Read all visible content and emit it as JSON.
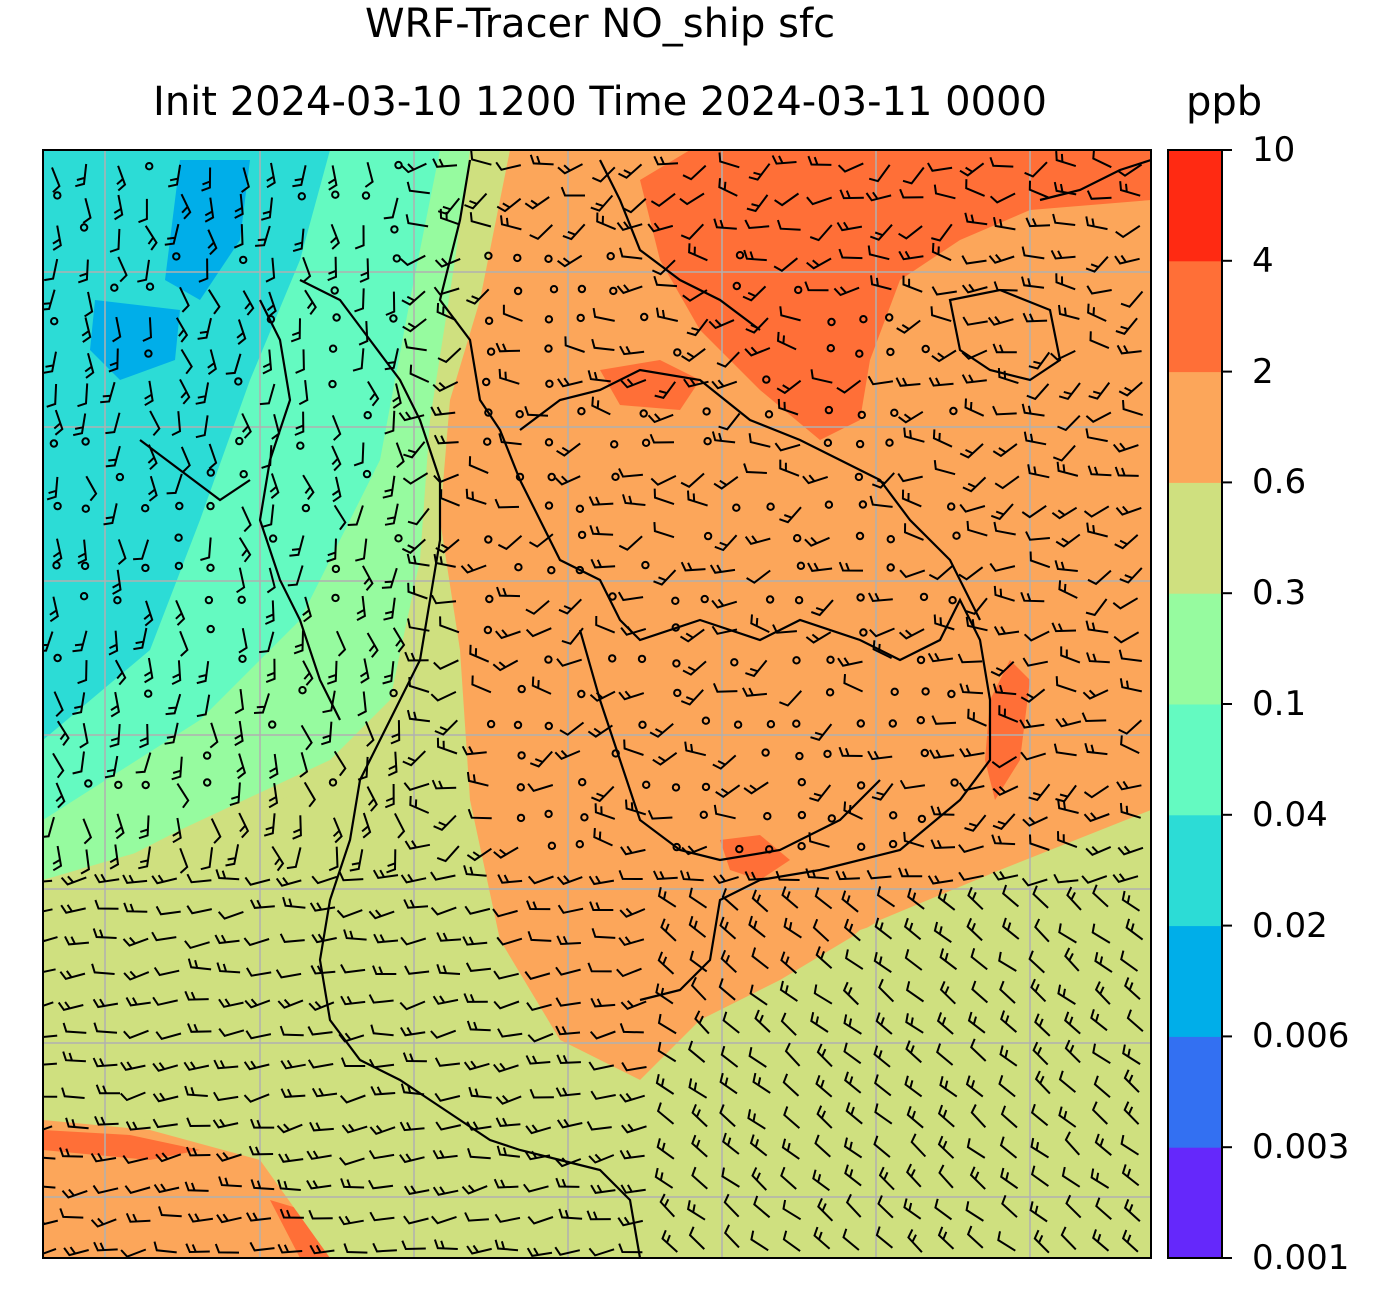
{
  "title": {
    "line1": "WRF-Tracer NO_ship sfc",
    "line2": "Init 2024-03-10 1200 Time 2024-03-11 0000",
    "units": "ppb"
  },
  "colorbar": {
    "levels": [
      "0.001",
      "0.003",
      "0.006",
      "0.02",
      "0.04",
      "0.1",
      "0.3",
      "0.6",
      "2",
      "4",
      "10"
    ],
    "colors": [
      "#6528fb",
      "#3370f2",
      "#00aee9",
      "#2cdcd6",
      "#64fac1",
      "#96fb9f",
      "#cfe07f",
      "#fca65a",
      "#ff6f37",
      "#ff2a12"
    ]
  },
  "map": {
    "background": "#cfe07f",
    "gridline_color": "#b0b0b0",
    "coastline_color": "#000000",
    "barb_color": "#000000"
  }
}
